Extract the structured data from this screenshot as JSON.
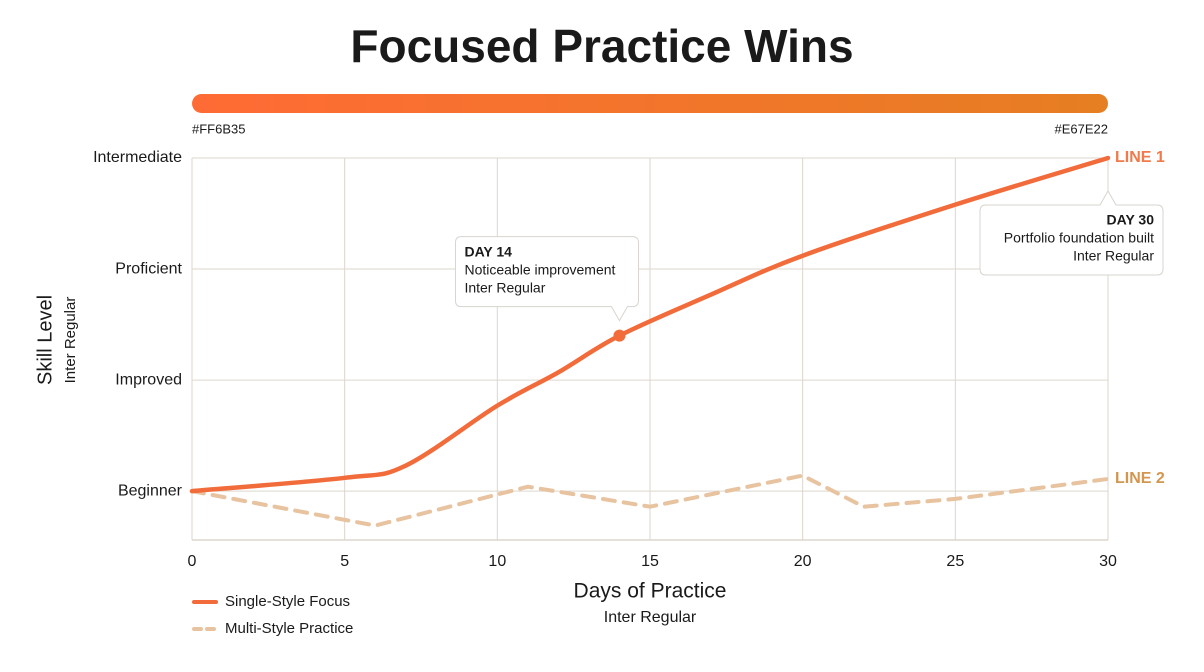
{
  "chart_data": {
    "type": "line",
    "title": "Focused Practice Wins",
    "gradient": {
      "start": "#FF6B35",
      "end": "#E67E22"
    },
    "x_label": "Days of Practice",
    "x_sublabel": "Inter Regular",
    "y_label": "Skill Level",
    "y_sublabel": "Inter Regular",
    "xlim": [
      0,
      30
    ],
    "xticks": [
      0,
      5,
      10,
      15,
      20,
      25,
      30
    ],
    "ylim": [
      -0.44,
      3
    ],
    "yticks": [
      {
        "value": 0,
        "label": "Beginner"
      },
      {
        "value": 1,
        "label": "Improved"
      },
      {
        "value": 2,
        "label": "Proficient"
      },
      {
        "value": 3,
        "label": "Intermediate"
      }
    ],
    "grid": true,
    "legend": "bottom-left",
    "series": [
      {
        "name": "Single-Style Focus",
        "color": "#F26B3A",
        "style": "solid",
        "smooth": true,
        "end_label": "LINE 1",
        "end_label_color": "#F07A4A",
        "x": [
          0,
          5,
          7,
          10,
          12,
          14,
          17,
          20,
          25,
          30
        ],
        "values": [
          0,
          0.12,
          0.23,
          0.77,
          1.07,
          1.4,
          1.77,
          2.12,
          2.58,
          3
        ]
      },
      {
        "name": "Multi-Style Practice",
        "color": "#E8C3A0",
        "style": "dashed",
        "smooth": false,
        "end_label": "LINE 2",
        "end_label_color": "#D4964E",
        "x": [
          0,
          6,
          11,
          15,
          20,
          22,
          25,
          30
        ],
        "values": [
          0,
          -0.31,
          0.04,
          -0.14,
          0.14,
          -0.14,
          -0.07,
          0.11
        ]
      }
    ],
    "annotations": [
      {
        "x": 14,
        "y": 1.4,
        "title": "DAY 14",
        "text": "Noticeable improvement",
        "subtext": "Inter Regular"
      },
      {
        "x": 30,
        "y": 3,
        "title": "DAY 30",
        "text": "Portfolio foundation built",
        "subtext": "Inter Regular"
      }
    ]
  }
}
